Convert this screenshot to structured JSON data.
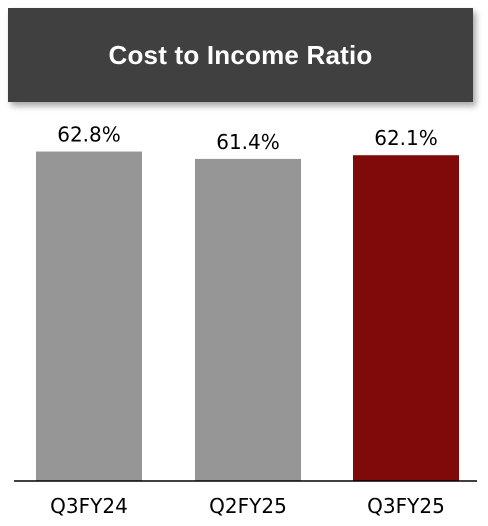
{
  "chart_data": {
    "type": "bar",
    "title": "Cost to Income Ratio",
    "categories": [
      "Q3FY24",
      "Q2FY25",
      "Q3FY25"
    ],
    "values": [
      62.8,
      61.4,
      62.1
    ],
    "value_labels": [
      "62.8%",
      "61.4%",
      "62.1%"
    ],
    "unit": "%",
    "ylim": [
      0,
      65
    ],
    "grid": false,
    "legend": "none",
    "colors": [
      "#969696",
      "#969696",
      "#7f0a0a"
    ],
    "xlabel": "",
    "ylabel": ""
  },
  "colors": {
    "banner_bg": "#404040",
    "banner_text": "#ffffff",
    "axis": "#000000"
  }
}
